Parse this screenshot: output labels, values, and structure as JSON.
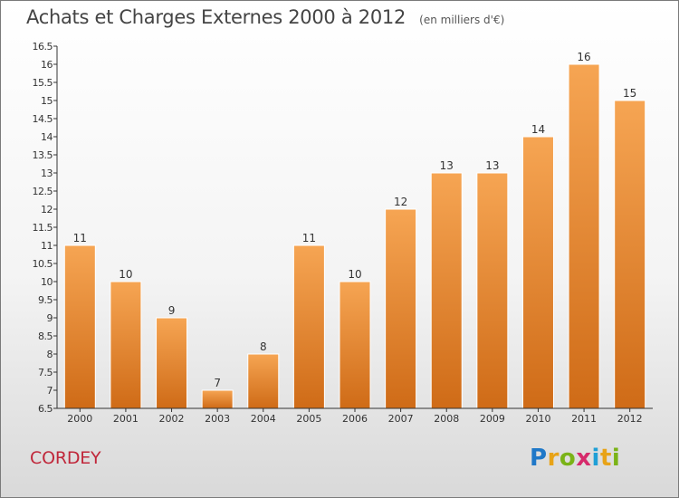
{
  "header": {
    "title": "Achats et Charges Externes 2000 à 2012",
    "unit": "(en milliers d'€)"
  },
  "footer": {
    "commune": "CORDEY",
    "logo_text": "Proxiti",
    "logo_letters": [
      {
        "ch": "P",
        "color": "#1f78c8"
      },
      {
        "ch": "r",
        "color": "#e8a317"
      },
      {
        "ch": "o",
        "color": "#7ab317"
      },
      {
        "ch": "x",
        "color": "#d62a6b"
      },
      {
        "ch": "i",
        "color": "#1f9fd6"
      },
      {
        "ch": "t",
        "color": "#e8a317"
      },
      {
        "ch": "i",
        "color": "#7ab317"
      }
    ]
  },
  "colors": {
    "bar_top": "#f6a553",
    "bar_bottom": "#cf6b17",
    "axis": "#333333",
    "commune": "#c0273a"
  },
  "chart_data": {
    "type": "bar",
    "title": "Achats et Charges Externes 2000 à 2012",
    "subtitle": "(en milliers d'€)",
    "categories": [
      "2000",
      "2001",
      "2002",
      "2003",
      "2004",
      "2005",
      "2006",
      "2007",
      "2008",
      "2009",
      "2010",
      "2011",
      "2012"
    ],
    "values": [
      11,
      10,
      9,
      7,
      8,
      11,
      10,
      12,
      13,
      13,
      14,
      16,
      15
    ],
    "value_labels": [
      "11",
      "10",
      "9",
      "7",
      "8",
      "11",
      "10",
      "12",
      "13",
      "13",
      "14",
      "16",
      "15"
    ],
    "ylim": [
      6.5,
      16.5
    ],
    "yticks": [
      6.5,
      7,
      7.5,
      8,
      8.5,
      9,
      9.5,
      10,
      10.5,
      11,
      11.5,
      12,
      12.5,
      13,
      13.5,
      14,
      14.5,
      15,
      15.5,
      16,
      16.5
    ],
    "ytick_labels": [
      "6.5",
      "7",
      "7.5",
      "8",
      "8.5",
      "9",
      "9.5",
      "10",
      "10.5",
      "11",
      "11.5",
      "12",
      "12.5",
      "13",
      "13.5",
      "14",
      "14.5",
      "15",
      "15.5",
      "16",
      "16.5"
    ],
    "xlabel": "",
    "ylabel": "",
    "grid": false,
    "legend": "none"
  }
}
